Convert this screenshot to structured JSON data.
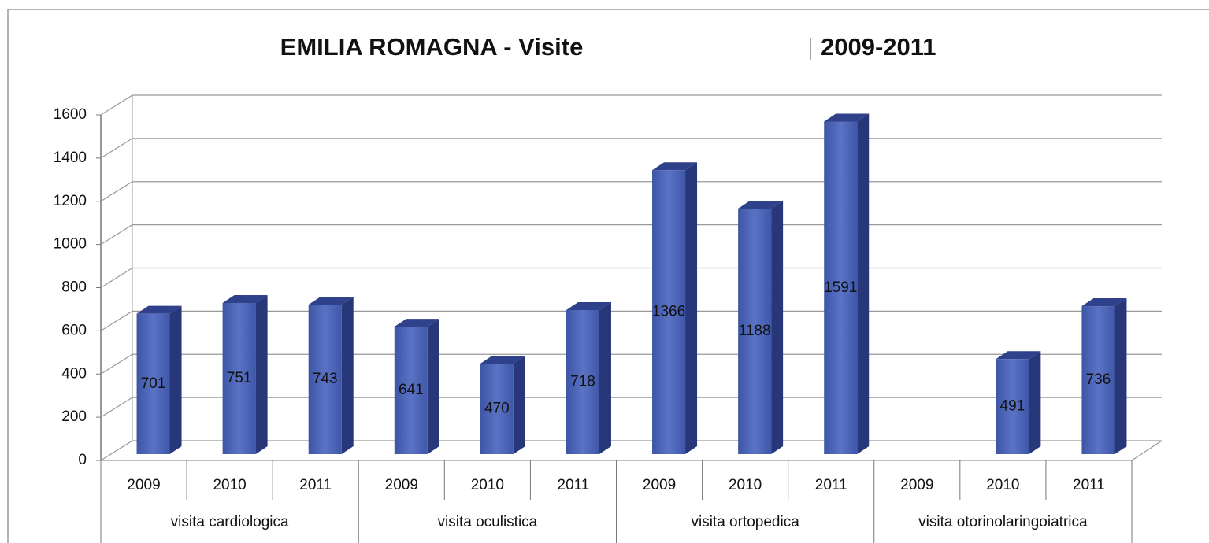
{
  "chart_data": {
    "type": "bar3d",
    "title": "EMILIA ROMAGNA - Visite",
    "title_right": "2009-2011",
    "groups": [
      {
        "name": "visita cardiologica",
        "categories": [
          "2009",
          "2010",
          "2011"
        ],
        "values": [
          701,
          751,
          743
        ]
      },
      {
        "name": "visita oculistica",
        "categories": [
          "2009",
          "2010",
          "2011"
        ],
        "values": [
          641,
          470,
          718
        ]
      },
      {
        "name": "visita ortopedica",
        "categories": [
          "2009",
          "2010",
          "2011"
        ],
        "values": [
          1366,
          1188,
          1591
        ]
      },
      {
        "name": "visita otorinolaringoiatrica",
        "categories": [
          "2009",
          "2010",
          "2011"
        ],
        "values": [
          null,
          491,
          736
        ]
      }
    ],
    "color": "#4a62b2",
    "ylim": [
      0,
      1600
    ],
    "yticks": [
      0,
      200,
      400,
      600,
      800,
      1000,
      1200,
      1400,
      1600
    ],
    "grid": true
  }
}
